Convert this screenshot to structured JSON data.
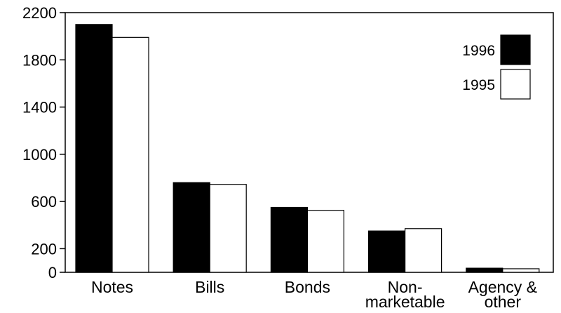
{
  "chart_data": {
    "type": "bar",
    "categories": [
      "Notes",
      "Bills",
      "Bonds",
      "Non-\nmarketable",
      "Agency &\nother"
    ],
    "series": [
      {
        "name": "1996",
        "values": [
          2100,
          760,
          550,
          350,
          35
        ],
        "color": "#000000"
      },
      {
        "name": "1995",
        "values": [
          1990,
          745,
          525,
          370,
          30
        ],
        "color": "#ffffff"
      }
    ],
    "y_ticks": [
      0,
      200,
      600,
      1000,
      1400,
      1800,
      2200
    ],
    "ylim": [
      0,
      2200
    ],
    "title": "",
    "xlabel": "",
    "ylabel": "",
    "grid": false,
    "legend_position": "top-right"
  }
}
